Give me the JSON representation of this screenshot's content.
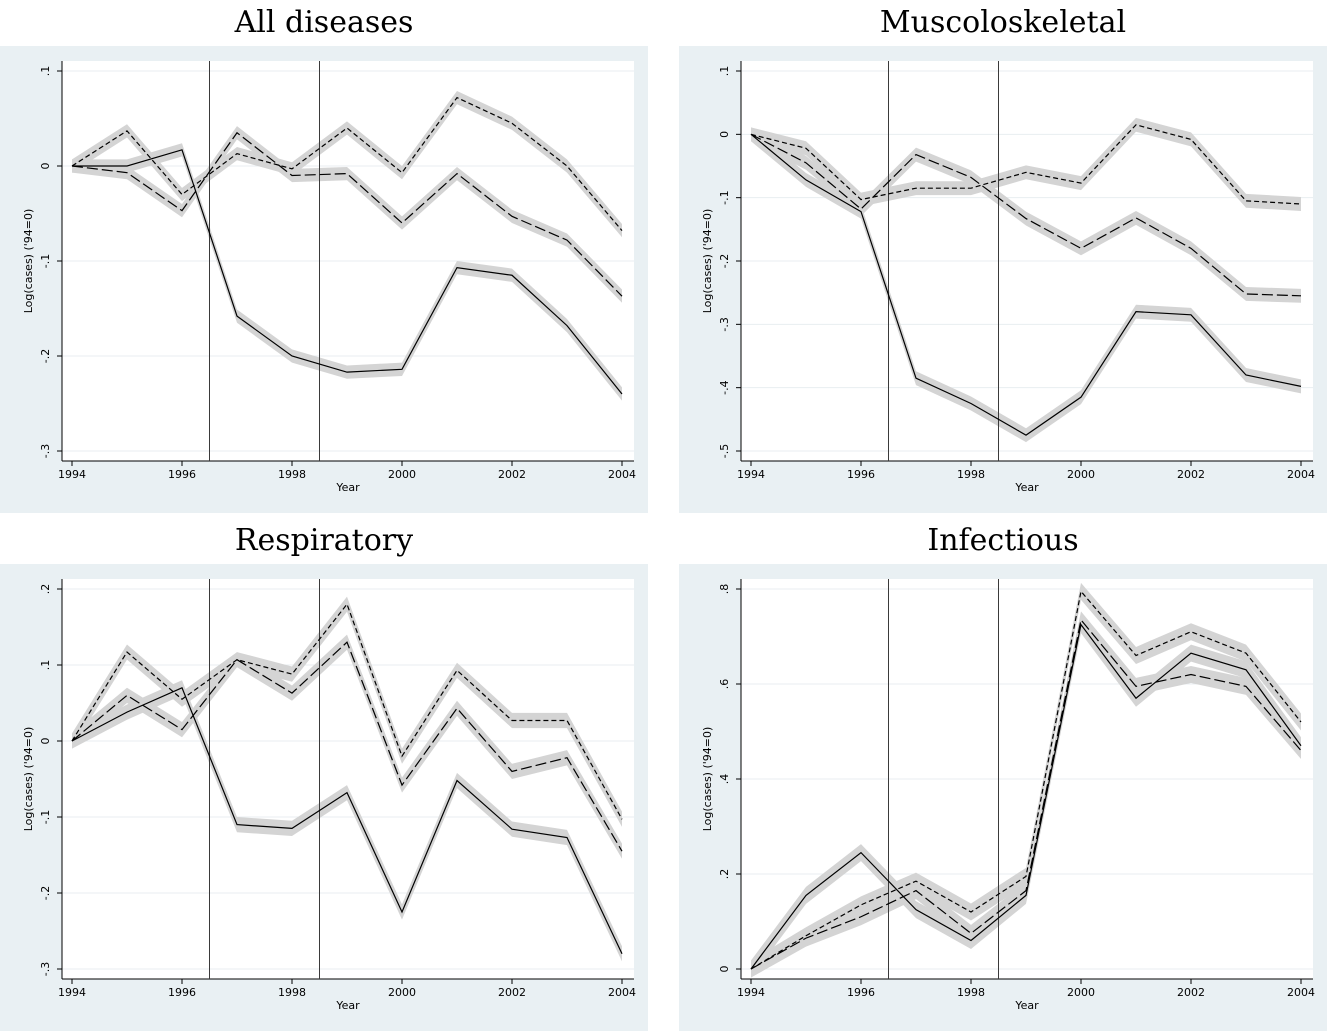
{
  "chart_data": [
    {
      "type": "line",
      "title": "All diseases",
      "xlabel": "Year",
      "ylabel": "Log(cases) ('94=0)",
      "xlim": [
        1994,
        2004
      ],
      "ylim": [
        -0.3,
        0.1
      ],
      "xticks": [
        1994,
        1996,
        1998,
        2000,
        2002,
        2004
      ],
      "yticks": [
        -0.3,
        -0.2,
        -0.1,
        0,
        0.1
      ],
      "yticklabels": [
        "-.3",
        "-.2",
        "-.1",
        "0",
        ".1"
      ],
      "vlines": [
        1996.5,
        1998.5
      ],
      "x": [
        1994,
        1995,
        1996,
        1997,
        1998,
        1999,
        2000,
        2001,
        2002,
        2003,
        2004
      ],
      "series": [
        {
          "style": "solid",
          "values": [
            0,
            0,
            0.017,
            -0.158,
            -0.2,
            -0.217,
            -0.214,
            -0.107,
            -0.115,
            -0.168,
            -0.24
          ]
        },
        {
          "style": "longdash",
          "values": [
            0,
            -0.007,
            -0.047,
            0.035,
            -0.01,
            -0.008,
            -0.06,
            -0.008,
            -0.053,
            -0.078,
            -0.137
          ]
        },
        {
          "style": "shortdash",
          "values": [
            0,
            0.037,
            -0.03,
            0.013,
            -0.003,
            0.04,
            -0.007,
            0.072,
            0.045,
            0.0,
            -0.068
          ]
        }
      ],
      "band_halfwidth": 0.007
    },
    {
      "type": "line",
      "title": "Muscoloskeletal",
      "xlabel": "Year",
      "ylabel": "Log(cases) ('94=0)",
      "xlim": [
        1994,
        2004
      ],
      "ylim": [
        -0.5,
        0.1
      ],
      "xticks": [
        1994,
        1996,
        1998,
        2000,
        2002,
        2004
      ],
      "yticks": [
        -0.5,
        -0.4,
        -0.3,
        -0.2,
        -0.1,
        0,
        0.1
      ],
      "yticklabels": [
        "-.5",
        "-.4",
        "-.3",
        "-.2",
        "-.1",
        "0",
        ".1"
      ],
      "vlines": [
        1996.5,
        1998.5
      ],
      "x": [
        1994,
        1995,
        1996,
        1997,
        1998,
        1999,
        2000,
        2001,
        2002,
        2003,
        2004
      ],
      "series": [
        {
          "style": "solid",
          "values": [
            0,
            -0.072,
            -0.122,
            -0.385,
            -0.425,
            -0.475,
            -0.415,
            -0.28,
            -0.285,
            -0.38,
            -0.398
          ]
        },
        {
          "style": "longdash",
          "values": [
            0,
            -0.045,
            -0.118,
            -0.032,
            -0.068,
            -0.133,
            -0.18,
            -0.132,
            -0.18,
            -0.252,
            -0.255
          ]
        },
        {
          "style": "shortdash",
          "values": [
            0,
            -0.022,
            -0.103,
            -0.085,
            -0.085,
            -0.06,
            -0.077,
            0.015,
            -0.008,
            -0.105,
            -0.11
          ]
        }
      ],
      "band_halfwidth": 0.011
    },
    {
      "type": "line",
      "title": "Respiratory",
      "xlabel": "Year",
      "ylabel": "Log(cases) ('94=0)",
      "xlim": [
        1994,
        2004
      ],
      "ylim": [
        -0.3,
        0.2
      ],
      "xticks": [
        1994,
        1996,
        1998,
        2000,
        2002,
        2004
      ],
      "yticks": [
        -0.3,
        -0.2,
        -0.1,
        0,
        0.1,
        0.2
      ],
      "yticklabels": [
        "-.3",
        "-.2",
        "-.1",
        "0",
        ".1",
        ".2"
      ],
      "vlines": [
        1996.5,
        1998.5
      ],
      "x": [
        1994,
        1995,
        1996,
        1997,
        1998,
        1999,
        2000,
        2001,
        2002,
        2003,
        2004
      ],
      "series": [
        {
          "style": "solid",
          "values": [
            0,
            0.038,
            0.07,
            -0.11,
            -0.115,
            -0.068,
            -0.225,
            -0.052,
            -0.116,
            -0.127,
            -0.28
          ]
        },
        {
          "style": "longdash",
          "values": [
            0,
            0.06,
            0.015,
            0.107,
            0.063,
            0.13,
            -0.058,
            0.043,
            -0.04,
            -0.022,
            -0.145
          ]
        },
        {
          "style": "shortdash",
          "values": [
            0,
            0.117,
            0.055,
            0.107,
            0.088,
            0.18,
            -0.02,
            0.093,
            0.027,
            0.027,
            -0.103
          ]
        }
      ],
      "band_halfwidth": 0.01
    },
    {
      "type": "line",
      "title": "Infectious",
      "xlabel": "Year",
      "ylabel": "Log(cases) ('94=0)",
      "xlim": [
        1994,
        2004
      ],
      "ylim": [
        0,
        0.8
      ],
      "xticks": [
        1994,
        1996,
        1998,
        2000,
        2002,
        2004
      ],
      "yticks": [
        0,
        0.2,
        0.4,
        0.6,
        0.8
      ],
      "yticklabels": [
        "0",
        ".2",
        ".4",
        ".6",
        ".8"
      ],
      "vlines": [
        1996.5,
        1998.5
      ],
      "x": [
        1994,
        1995,
        1996,
        1997,
        1998,
        1999,
        2000,
        2001,
        2002,
        2003,
        2004
      ],
      "series": [
        {
          "style": "solid",
          "values": [
            0,
            0.155,
            0.245,
            0.125,
            0.06,
            0.155,
            0.725,
            0.57,
            0.665,
            0.63,
            0.47
          ]
        },
        {
          "style": "longdash",
          "values": [
            0,
            0.065,
            0.11,
            0.165,
            0.075,
            0.165,
            0.735,
            0.595,
            0.62,
            0.595,
            0.46
          ]
        },
        {
          "style": "shortdash",
          "values": [
            0,
            0.07,
            0.135,
            0.185,
            0.12,
            0.195,
            0.795,
            0.66,
            0.71,
            0.665,
            0.52
          ]
        }
      ],
      "band_halfwidth": 0.018
    }
  ]
}
